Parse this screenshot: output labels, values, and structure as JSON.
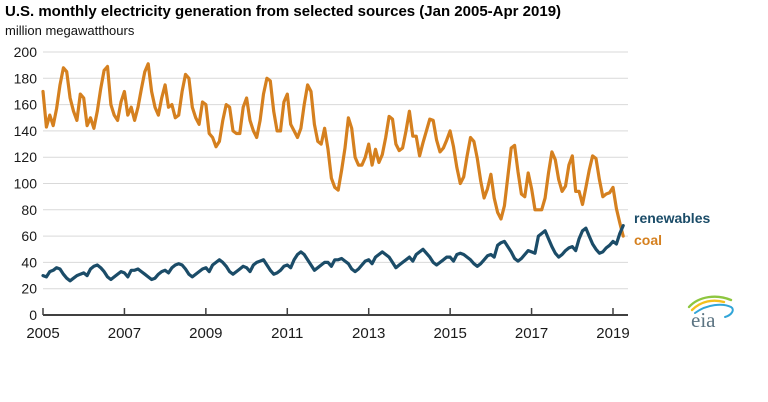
{
  "chart_data": {
    "type": "line",
    "title": "U.S. monthly electricity generation from selected sources (Jan 2005-Apr 2019)",
    "subtitle": "million megawatthours",
    "x_start": "2005-01",
    "x_end": "2019-04",
    "x_interval": "monthly",
    "x_ticks": [
      2005,
      2007,
      2009,
      2011,
      2013,
      2015,
      2017,
      2019
    ],
    "y_ticks": [
      0,
      20,
      40,
      60,
      80,
      100,
      120,
      140,
      160,
      180,
      200
    ],
    "ylim": [
      0,
      200
    ],
    "grid": "horizontal",
    "grid_color": "#d9d9d9",
    "axis_color": "#404040",
    "text_color": "#1a1a1a",
    "legend_position": "right-end-of-lines",
    "series": [
      {
        "name": "coal",
        "color": "#d5801f",
        "values": [
          170,
          143,
          152,
          144,
          157,
          175,
          188,
          185,
          165,
          155,
          148,
          168,
          165,
          144,
          150,
          142,
          155,
          172,
          186,
          189,
          160,
          152,
          148,
          162,
          170,
          152,
          158,
          148,
          158,
          172,
          185,
          191,
          170,
          158,
          152,
          165,
          175,
          158,
          160,
          150,
          152,
          170,
          183,
          180,
          158,
          150,
          145,
          162,
          160,
          138,
          135,
          128,
          132,
          148,
          160,
          158,
          140,
          138,
          138,
          158,
          165,
          148,
          140,
          135,
          148,
          168,
          180,
          178,
          155,
          140,
          140,
          162,
          168,
          145,
          140,
          135,
          142,
          160,
          175,
          170,
          145,
          132,
          130,
          142,
          126,
          104,
          97,
          95,
          110,
          127,
          150,
          142,
          120,
          114,
          114,
          120,
          130,
          114,
          126,
          116,
          122,
          135,
          151,
          149,
          130,
          125,
          127,
          140,
          155,
          136,
          136,
          121,
          131,
          140,
          149,
          148,
          133,
          124,
          127,
          133,
          140,
          128,
          112,
          100,
          105,
          121,
          135,
          132,
          119,
          102,
          89,
          96,
          107,
          89,
          78,
          73,
          83,
          105,
          127,
          129,
          109,
          92,
          90,
          108,
          96,
          80,
          80,
          80,
          89,
          108,
          124,
          118,
          103,
          94,
          98,
          114,
          121,
          94,
          94,
          84,
          97,
          110,
          121,
          119,
          103,
          90,
          92,
          93,
          97,
          81,
          70,
          60
        ]
      },
      {
        "name": "renewables",
        "color": "#1b4c68",
        "values": [
          30,
          29,
          33,
          34,
          36,
          35,
          31,
          28,
          26,
          28,
          30,
          31,
          32,
          30,
          35,
          37,
          38,
          36,
          33,
          29,
          27,
          29,
          31,
          33,
          32,
          29,
          34,
          34,
          35,
          33,
          31,
          29,
          27,
          28,
          31,
          33,
          34,
          32,
          36,
          38,
          39,
          38,
          35,
          31,
          29,
          31,
          33,
          35,
          36,
          33,
          38,
          40,
          42,
          40,
          37,
          33,
          31,
          33,
          35,
          37,
          36,
          33,
          38,
          40,
          41,
          42,
          38,
          34,
          31,
          32,
          34,
          37,
          38,
          36,
          42,
          46,
          48,
          46,
          42,
          38,
          34,
          36,
          38,
          40,
          40,
          37,
          42,
          42,
          43,
          41,
          39,
          35,
          33,
          35,
          38,
          41,
          42,
          39,
          44,
          46,
          48,
          46,
          44,
          40,
          36,
          38,
          40,
          42,
          44,
          41,
          46,
          48,
          50,
          47,
          44,
          40,
          38,
          40,
          42,
          44,
          44,
          41,
          46,
          47,
          46,
          44,
          42,
          39,
          37,
          39,
          42,
          45,
          46,
          44,
          53,
          55,
          56,
          52,
          48,
          43,
          41,
          43,
          46,
          49,
          48,
          47,
          60,
          62,
          64,
          58,
          52,
          47,
          44,
          46,
          49,
          51,
          52,
          49,
          58,
          64,
          66,
          60,
          54,
          50,
          47,
          48,
          51,
          53,
          56,
          54,
          62,
          68
        ]
      }
    ],
    "legend": [
      {
        "label": "renewables",
        "color": "#1b4c68"
      },
      {
        "label": "coal",
        "color": "#d5801f"
      }
    ]
  },
  "logo": {
    "text": "eia"
  }
}
